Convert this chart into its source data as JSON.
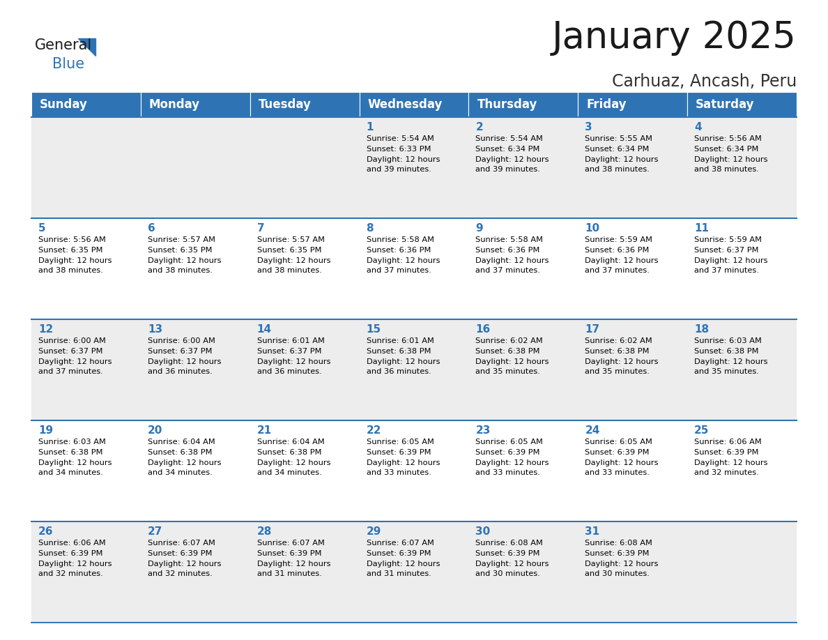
{
  "title": "January 2025",
  "subtitle": "Carhuaz, Ancash, Peru",
  "header_bg": "#2E74B5",
  "header_text_color": "#FFFFFF",
  "cell_bg_odd": "#EDEDED",
  "cell_bg_even": "#FFFFFF",
  "day_number_color": "#2E74B5",
  "text_color": "#000000",
  "grid_line_color": "#2E74B5",
  "days_of_week": [
    "Sunday",
    "Monday",
    "Tuesday",
    "Wednesday",
    "Thursday",
    "Friday",
    "Saturday"
  ],
  "calendar": [
    [
      {
        "day": "",
        "sunrise": "",
        "sunset": "",
        "daylight_h": "",
        "daylight_m": ""
      },
      {
        "day": "",
        "sunrise": "",
        "sunset": "",
        "daylight_h": "",
        "daylight_m": ""
      },
      {
        "day": "",
        "sunrise": "",
        "sunset": "",
        "daylight_h": "",
        "daylight_m": ""
      },
      {
        "day": "1",
        "sunrise": "5:54 AM",
        "sunset": "6:33 PM",
        "daylight_h": "12",
        "daylight_m": "39"
      },
      {
        "day": "2",
        "sunrise": "5:54 AM",
        "sunset": "6:34 PM",
        "daylight_h": "12",
        "daylight_m": "39"
      },
      {
        "day": "3",
        "sunrise": "5:55 AM",
        "sunset": "6:34 PM",
        "daylight_h": "12",
        "daylight_m": "38"
      },
      {
        "day": "4",
        "sunrise": "5:56 AM",
        "sunset": "6:34 PM",
        "daylight_h": "12",
        "daylight_m": "38"
      }
    ],
    [
      {
        "day": "5",
        "sunrise": "5:56 AM",
        "sunset": "6:35 PM",
        "daylight_h": "12",
        "daylight_m": "38"
      },
      {
        "day": "6",
        "sunrise": "5:57 AM",
        "sunset": "6:35 PM",
        "daylight_h": "12",
        "daylight_m": "38"
      },
      {
        "day": "7",
        "sunrise": "5:57 AM",
        "sunset": "6:35 PM",
        "daylight_h": "12",
        "daylight_m": "38"
      },
      {
        "day": "8",
        "sunrise": "5:58 AM",
        "sunset": "6:36 PM",
        "daylight_h": "12",
        "daylight_m": "37"
      },
      {
        "day": "9",
        "sunrise": "5:58 AM",
        "sunset": "6:36 PM",
        "daylight_h": "12",
        "daylight_m": "37"
      },
      {
        "day": "10",
        "sunrise": "5:59 AM",
        "sunset": "6:36 PM",
        "daylight_h": "12",
        "daylight_m": "37"
      },
      {
        "day": "11",
        "sunrise": "5:59 AM",
        "sunset": "6:37 PM",
        "daylight_h": "12",
        "daylight_m": "37"
      }
    ],
    [
      {
        "day": "12",
        "sunrise": "6:00 AM",
        "sunset": "6:37 PM",
        "daylight_h": "12",
        "daylight_m": "37"
      },
      {
        "day": "13",
        "sunrise": "6:00 AM",
        "sunset": "6:37 PM",
        "daylight_h": "12",
        "daylight_m": "36"
      },
      {
        "day": "14",
        "sunrise": "6:01 AM",
        "sunset": "6:37 PM",
        "daylight_h": "12",
        "daylight_m": "36"
      },
      {
        "day": "15",
        "sunrise": "6:01 AM",
        "sunset": "6:38 PM",
        "daylight_h": "12",
        "daylight_m": "36"
      },
      {
        "day": "16",
        "sunrise": "6:02 AM",
        "sunset": "6:38 PM",
        "daylight_h": "12",
        "daylight_m": "35"
      },
      {
        "day": "17",
        "sunrise": "6:02 AM",
        "sunset": "6:38 PM",
        "daylight_h": "12",
        "daylight_m": "35"
      },
      {
        "day": "18",
        "sunrise": "6:03 AM",
        "sunset": "6:38 PM",
        "daylight_h": "12",
        "daylight_m": "35"
      }
    ],
    [
      {
        "day": "19",
        "sunrise": "6:03 AM",
        "sunset": "6:38 PM",
        "daylight_h": "12",
        "daylight_m": "34"
      },
      {
        "day": "20",
        "sunrise": "6:04 AM",
        "sunset": "6:38 PM",
        "daylight_h": "12",
        "daylight_m": "34"
      },
      {
        "day": "21",
        "sunrise": "6:04 AM",
        "sunset": "6:38 PM",
        "daylight_h": "12",
        "daylight_m": "34"
      },
      {
        "day": "22",
        "sunrise": "6:05 AM",
        "sunset": "6:39 PM",
        "daylight_h": "12",
        "daylight_m": "33"
      },
      {
        "day": "23",
        "sunrise": "6:05 AM",
        "sunset": "6:39 PM",
        "daylight_h": "12",
        "daylight_m": "33"
      },
      {
        "day": "24",
        "sunrise": "6:05 AM",
        "sunset": "6:39 PM",
        "daylight_h": "12",
        "daylight_m": "33"
      },
      {
        "day": "25",
        "sunrise": "6:06 AM",
        "sunset": "6:39 PM",
        "daylight_h": "12",
        "daylight_m": "32"
      }
    ],
    [
      {
        "day": "26",
        "sunrise": "6:06 AM",
        "sunset": "6:39 PM",
        "daylight_h": "12",
        "daylight_m": "32"
      },
      {
        "day": "27",
        "sunrise": "6:07 AM",
        "sunset": "6:39 PM",
        "daylight_h": "12",
        "daylight_m": "32"
      },
      {
        "day": "28",
        "sunrise": "6:07 AM",
        "sunset": "6:39 PM",
        "daylight_h": "12",
        "daylight_m": "31"
      },
      {
        "day": "29",
        "sunrise": "6:07 AM",
        "sunset": "6:39 PM",
        "daylight_h": "12",
        "daylight_m": "31"
      },
      {
        "day": "30",
        "sunrise": "6:08 AM",
        "sunset": "6:39 PM",
        "daylight_h": "12",
        "daylight_m": "30"
      },
      {
        "day": "31",
        "sunrise": "6:08 AM",
        "sunset": "6:39 PM",
        "daylight_h": "12",
        "daylight_m": "30"
      },
      {
        "day": "",
        "sunrise": "",
        "sunset": "",
        "daylight_h": "",
        "daylight_m": ""
      }
    ]
  ],
  "title_fontsize": 38,
  "subtitle_fontsize": 17,
  "header_fontsize": 12,
  "day_num_fontsize": 11,
  "cell_text_fontsize": 8.2,
  "logo_general_fontsize": 15,
  "logo_blue_fontsize": 15
}
